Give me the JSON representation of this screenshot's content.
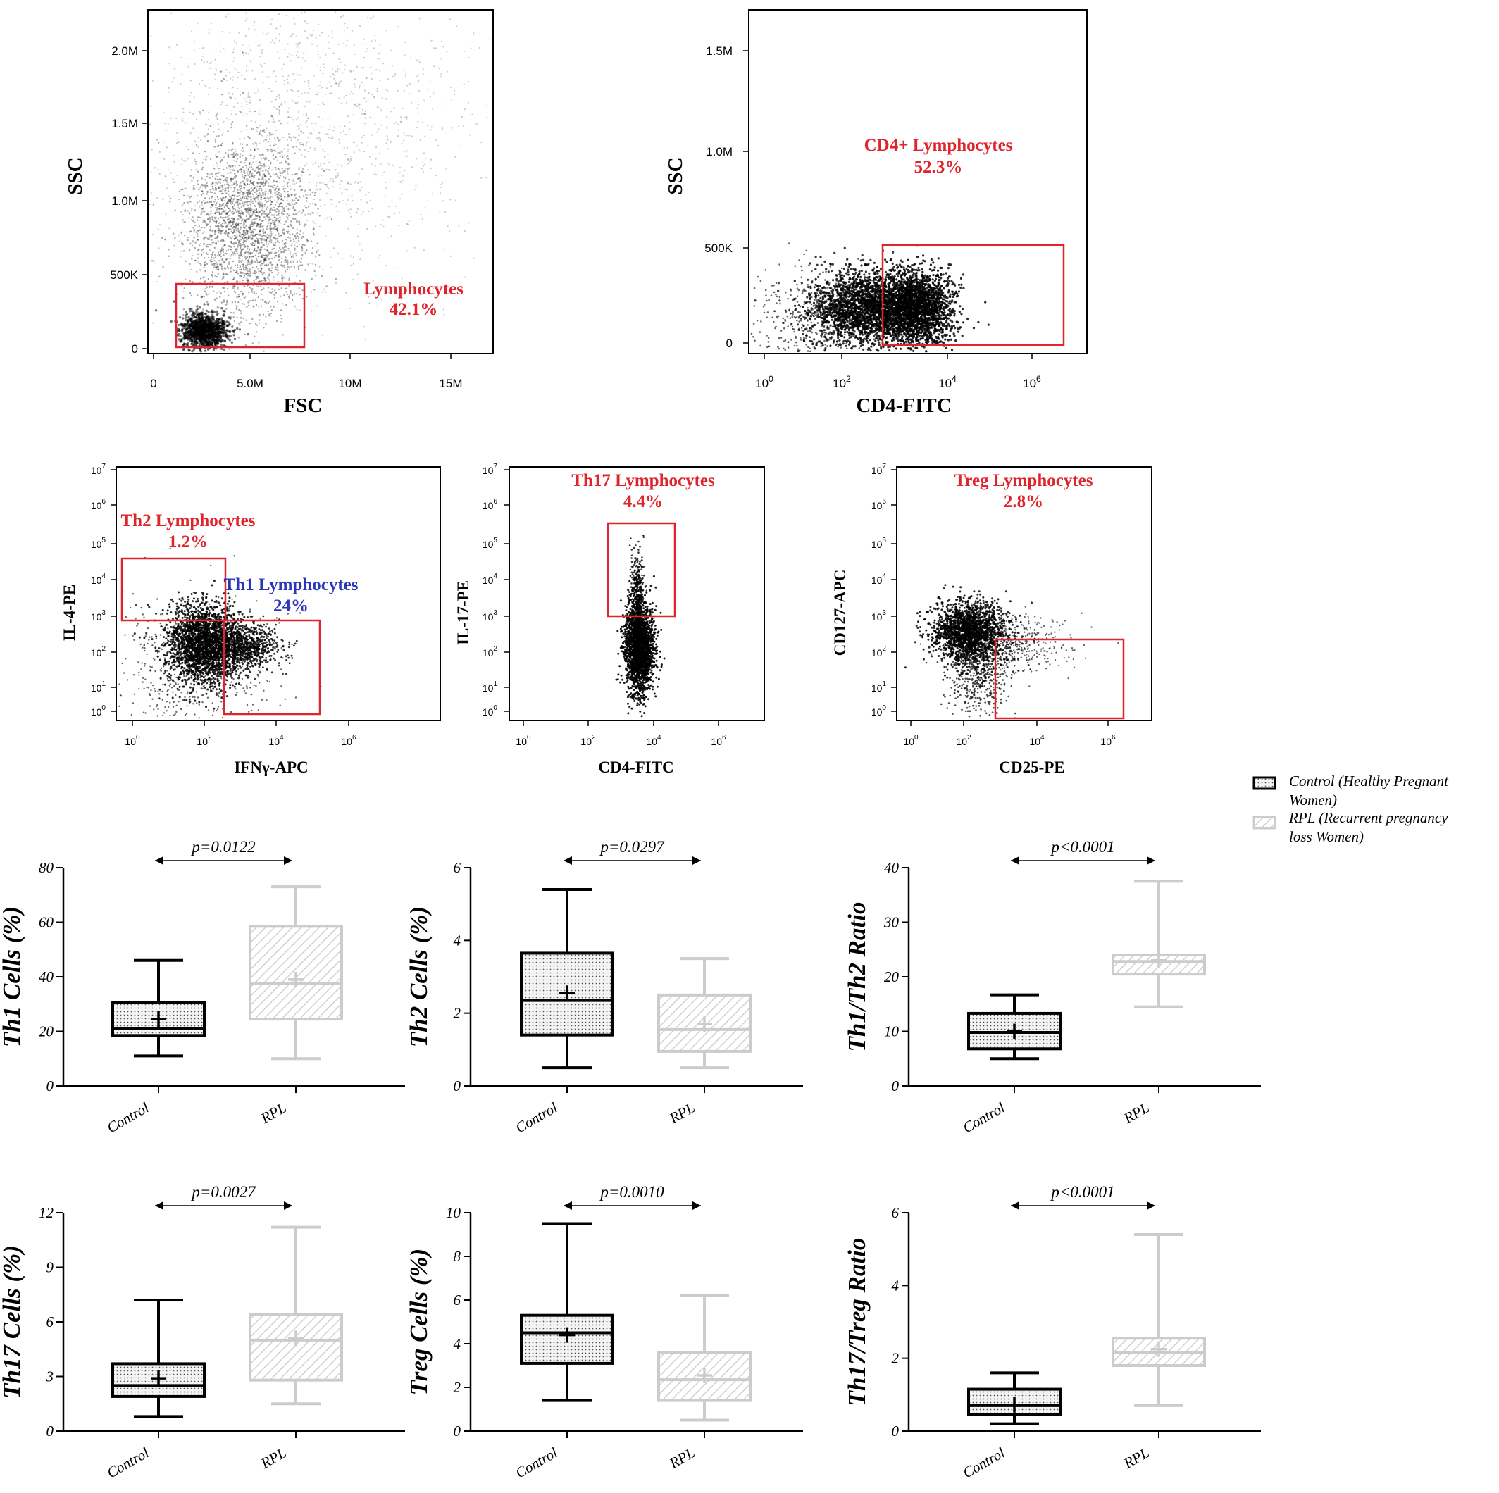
{
  "flow_panels": [
    {
      "id": "fsc-ssc",
      "xlabel": "FSC",
      "ylabel": "SSC",
      "xticks": [
        "0",
        "5.0M",
        "10M",
        "15M"
      ],
      "yticks": [
        "0",
        "500K",
        "1.0M",
        "1.5M",
        "2.0M"
      ],
      "gates": [
        {
          "label": "Lymphocytes",
          "percent": "42.1%",
          "color": "#e0242b"
        }
      ]
    },
    {
      "id": "cd4-ssc",
      "xlabel": "CD4-FITC",
      "ylabel": "SSC",
      "xticks": [
        "10^0",
        "10^2",
        "10^4",
        "10^6"
      ],
      "yticks": [
        "0",
        "500K",
        "1.0M",
        "1.5M"
      ],
      "gates": [
        {
          "label": "CD4+ Lymphocytes",
          "percent": "52.3%",
          "color": "#e0242b"
        }
      ]
    },
    {
      "id": "ifng-il4",
      "xlabel": "IFNγ-APC",
      "ylabel": "IL-4-PE",
      "xticks": [
        "10^0",
        "10^2",
        "10^4",
        "10^6"
      ],
      "yticks": [
        "10^0",
        "10^1",
        "10^2",
        "10^3",
        "10^4",
        "10^5",
        "10^6",
        "10^7"
      ],
      "gates": [
        {
          "label": "Th2 Lymphocytes",
          "percent": "1.2%",
          "color": "#e0242b"
        },
        {
          "label": "Th1 Lymphocytes",
          "percent": "24%",
          "color": "#2a37b8"
        }
      ]
    },
    {
      "id": "cd4-il17",
      "xlabel": "CD4-FITC",
      "ylabel": "IL-17-PE",
      "xticks": [
        "10^0",
        "10^2",
        "10^4",
        "10^6"
      ],
      "yticks": [
        "10^0",
        "10^1",
        "10^2",
        "10^3",
        "10^4",
        "10^5",
        "10^6",
        "10^7"
      ],
      "gates": [
        {
          "label": "Th17 Lymphocytes",
          "percent": "4.4%",
          "color": "#e0242b"
        }
      ]
    },
    {
      "id": "cd25-cd127",
      "xlabel": "CD25-PE",
      "ylabel": "CD127-APC",
      "xticks": [
        "10^0",
        "10^2",
        "10^4",
        "10^6"
      ],
      "yticks": [
        "10^0",
        "10^1",
        "10^2",
        "10^3",
        "10^4",
        "10^5",
        "10^6",
        "10^7"
      ],
      "gates": [
        {
          "label": "Treg Lymphocytes",
          "percent": "2.8%",
          "color": "#e0242b"
        }
      ]
    }
  ],
  "legend": [
    {
      "group": "Control",
      "text": [
        "Control (Healthy Pregnant",
        "Women)"
      ],
      "color": "#000000",
      "fill": "dotted"
    },
    {
      "group": "RPL",
      "text": [
        "RPL (Recurrent pregnancy",
        "loss Women)"
      ],
      "color": "#cccccc",
      "fill": "hatched"
    }
  ],
  "chart_data": [
    {
      "type": "box",
      "ylabel": "Th1 Cells (%)",
      "ylim": [
        0,
        80
      ],
      "yticks": [
        0,
        20,
        40,
        60,
        80
      ],
      "categories": [
        "Control",
        "RPL"
      ],
      "pvalue": "p=0.0122",
      "boxes": [
        {
          "min": 11,
          "q1": 18.5,
          "median": 21,
          "q3": 30.5,
          "max": 46,
          "mean": 24.5
        },
        {
          "min": 10,
          "q1": 24.5,
          "median": 37.5,
          "q3": 58.5,
          "max": 73,
          "mean": 39
        }
      ]
    },
    {
      "type": "box",
      "ylabel": "Th2 Cells (%)",
      "ylim": [
        0,
        6
      ],
      "yticks": [
        0,
        2,
        4,
        6
      ],
      "categories": [
        "Control",
        "RPL"
      ],
      "pvalue": "p=0.0297",
      "boxes": [
        {
          "min": 0.5,
          "q1": 1.4,
          "median": 2.35,
          "q3": 3.65,
          "max": 5.4,
          "mean": 2.55
        },
        {
          "min": 0.5,
          "q1": 0.95,
          "median": 1.55,
          "q3": 2.5,
          "max": 3.5,
          "mean": 1.7
        }
      ]
    },
    {
      "type": "box",
      "ylabel": "Th1/Th2 Ratio",
      "ylim": [
        0,
        40
      ],
      "yticks": [
        0,
        10,
        20,
        30,
        40
      ],
      "categories": [
        "Control",
        "RPL"
      ],
      "pvalue": "p<0.0001",
      "boxes": [
        {
          "min": 5,
          "q1": 6.8,
          "median": 9.8,
          "q3": 13.3,
          "max": 16.7,
          "mean": 10
        },
        {
          "min": 14.5,
          "q1": 20.5,
          "median": 22.8,
          "q3": 24,
          "max": 37.5,
          "mean": 23
        }
      ]
    },
    {
      "type": "box",
      "ylabel": "Th17 Cells (%)",
      "ylim": [
        0,
        12
      ],
      "yticks": [
        0,
        3,
        6,
        9,
        12
      ],
      "categories": [
        "Control",
        "RPL"
      ],
      "pvalue": "p=0.0027",
      "boxes": [
        {
          "min": 0.8,
          "q1": 1.9,
          "median": 2.5,
          "q3": 3.7,
          "max": 7.2,
          "mean": 2.9
        },
        {
          "min": 1.5,
          "q1": 2.8,
          "median": 5,
          "q3": 6.4,
          "max": 11.2,
          "mean": 5.1
        }
      ]
    },
    {
      "type": "box",
      "ylabel": "Treg Cells (%)",
      "ylim": [
        0,
        10
      ],
      "yticks": [
        0,
        2,
        4,
        6,
        8,
        10
      ],
      "categories": [
        "Control",
        "RPL"
      ],
      "pvalue": "p=0.0010",
      "boxes": [
        {
          "min": 1.4,
          "q1": 3.1,
          "median": 4.5,
          "q3": 5.3,
          "max": 9.5,
          "mean": 4.4
        },
        {
          "min": 0.5,
          "q1": 1.4,
          "median": 2.35,
          "q3": 3.6,
          "max": 6.2,
          "mean": 2.55
        }
      ]
    },
    {
      "type": "box",
      "ylabel": "Th17/Treg Ratio",
      "ylim": [
        0,
        6
      ],
      "yticks": [
        0,
        2,
        4,
        6
      ],
      "categories": [
        "Control",
        "RPL"
      ],
      "pvalue": "p<0.0001",
      "boxes": [
        {
          "min": 0.2,
          "q1": 0.45,
          "median": 0.7,
          "q3": 1.15,
          "max": 1.6,
          "mean": 0.72
        },
        {
          "min": 0.7,
          "q1": 1.8,
          "median": 2.15,
          "q3": 2.55,
          "max": 5.4,
          "mean": 2.25
        }
      ]
    }
  ]
}
